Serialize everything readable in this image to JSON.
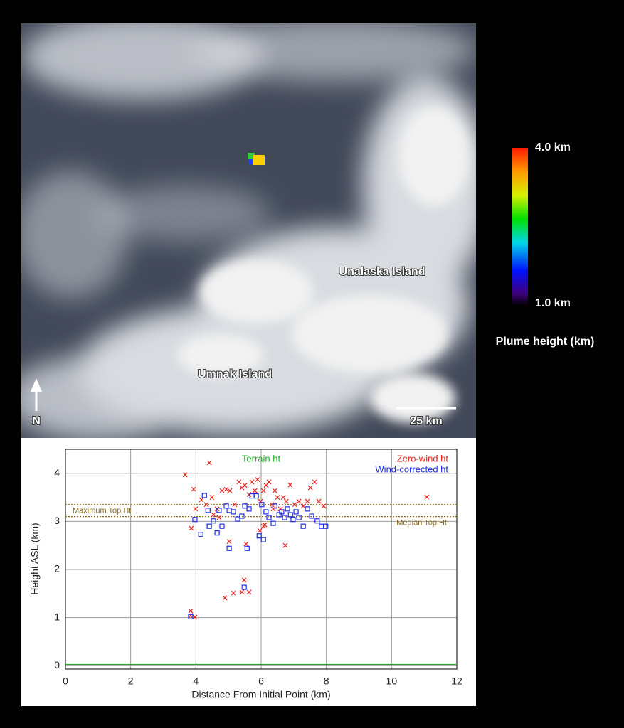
{
  "image": {
    "labels": [
      "Unalaska Island",
      "Umnak Island"
    ],
    "north": "N",
    "scale": "25 km",
    "colorbar": {
      "max_label": "4.0 km",
      "min_label": "1.0 km",
      "title": "Plume height (km)"
    }
  },
  "chart_data": {
    "type": "scatter",
    "xlabel": "Distance From Initial Point (km)",
    "ylabel": "Height ASL (km)",
    "xlim": [
      0,
      12
    ],
    "ylim": [
      -0.07,
      4.5
    ],
    "xticks": [
      0,
      2,
      4,
      6,
      8,
      10,
      12
    ],
    "yticks": [
      0,
      1,
      2,
      3,
      4
    ],
    "grid": true,
    "reference_lines": [
      {
        "name": "Terrain ht",
        "value": 0.02,
        "color": "#22b022",
        "dashed": false
      },
      {
        "name": "Maximum Top Ht",
        "value": 3.35,
        "color": "#8b6a1a",
        "dashed": true
      },
      {
        "name": "Median Top Ht",
        "value": 3.1,
        "color": "#8b6a1a",
        "dashed": true
      }
    ],
    "series": [
      {
        "name": "Zero-wind ht",
        "color": "#e8231f",
        "marker": "x",
        "x": [
          3.67,
          4.41,
          3.93,
          3.86,
          3.84,
          3.84,
          3.97,
          11.08,
          6.74,
          5.02,
          5.54,
          5.48,
          4.89,
          5.15,
          5.41,
          5.63,
          3.99,
          4.17,
          4.32,
          4.49,
          4.65,
          4.8,
          4.93,
          5.04,
          5.19,
          5.32,
          5.41,
          5.5,
          5.63,
          5.72,
          5.81,
          5.89,
          5.98,
          6.07,
          6.15,
          6.24,
          6.33,
          6.42,
          6.5,
          6.59,
          6.68,
          6.77,
          6.89,
          7.03,
          7.16,
          7.29,
          7.42,
          7.51,
          7.64,
          7.77,
          7.92,
          6.07,
          5.96,
          6.11,
          6.37,
          4.71,
          4.54
        ],
        "values": [
          3.97,
          4.22,
          3.67,
          2.86,
          1.14,
          1.04,
          1.01,
          3.51,
          2.5,
          2.58,
          2.53,
          1.78,
          1.41,
          1.51,
          1.53,
          1.53,
          3.26,
          3.45,
          3.35,
          3.5,
          3.26,
          3.64,
          3.67,
          3.64,
          3.35,
          3.82,
          3.7,
          3.75,
          3.56,
          3.82,
          3.64,
          3.87,
          3.42,
          3.64,
          3.75,
          3.82,
          3.35,
          3.64,
          3.5,
          3.26,
          3.5,
          3.42,
          3.76,
          3.35,
          3.42,
          3.32,
          3.42,
          3.7,
          3.82,
          3.42,
          3.32,
          2.9,
          2.81,
          2.93,
          3.26,
          3.08,
          3.14
        ]
      },
      {
        "name": "Wind-corrected ht",
        "color": "#1f2de0",
        "marker": "square",
        "x": [
          3.84,
          5.48,
          5.57,
          5.02,
          3.97,
          4.15,
          4.26,
          4.37,
          4.41,
          4.54,
          4.65,
          4.71,
          4.8,
          4.93,
          5.02,
          5.15,
          5.28,
          5.41,
          5.5,
          5.63,
          5.72,
          5.85,
          5.94,
          6.02,
          6.07,
          6.15,
          6.24,
          6.37,
          6.42,
          6.55,
          6.63,
          6.72,
          6.81,
          6.9,
          6.98,
          7.07,
          7.16,
          7.29,
          7.42,
          7.55,
          7.72,
          7.85,
          7.98
        ],
        "values": [
          1.02,
          1.63,
          2.44,
          2.44,
          3.04,
          2.73,
          3.54,
          3.23,
          2.9,
          3.01,
          2.76,
          3.23,
          2.9,
          3.32,
          3.23,
          3.2,
          3.05,
          3.11,
          3.32,
          3.26,
          3.53,
          3.53,
          2.7,
          3.35,
          2.62,
          3.2,
          3.08,
          2.96,
          3.32,
          3.14,
          3.2,
          3.08,
          3.26,
          3.14,
          3.04,
          3.2,
          3.08,
          2.9,
          3.26,
          3.11,
          3.01,
          2.9,
          2.9
        ]
      }
    ]
  }
}
